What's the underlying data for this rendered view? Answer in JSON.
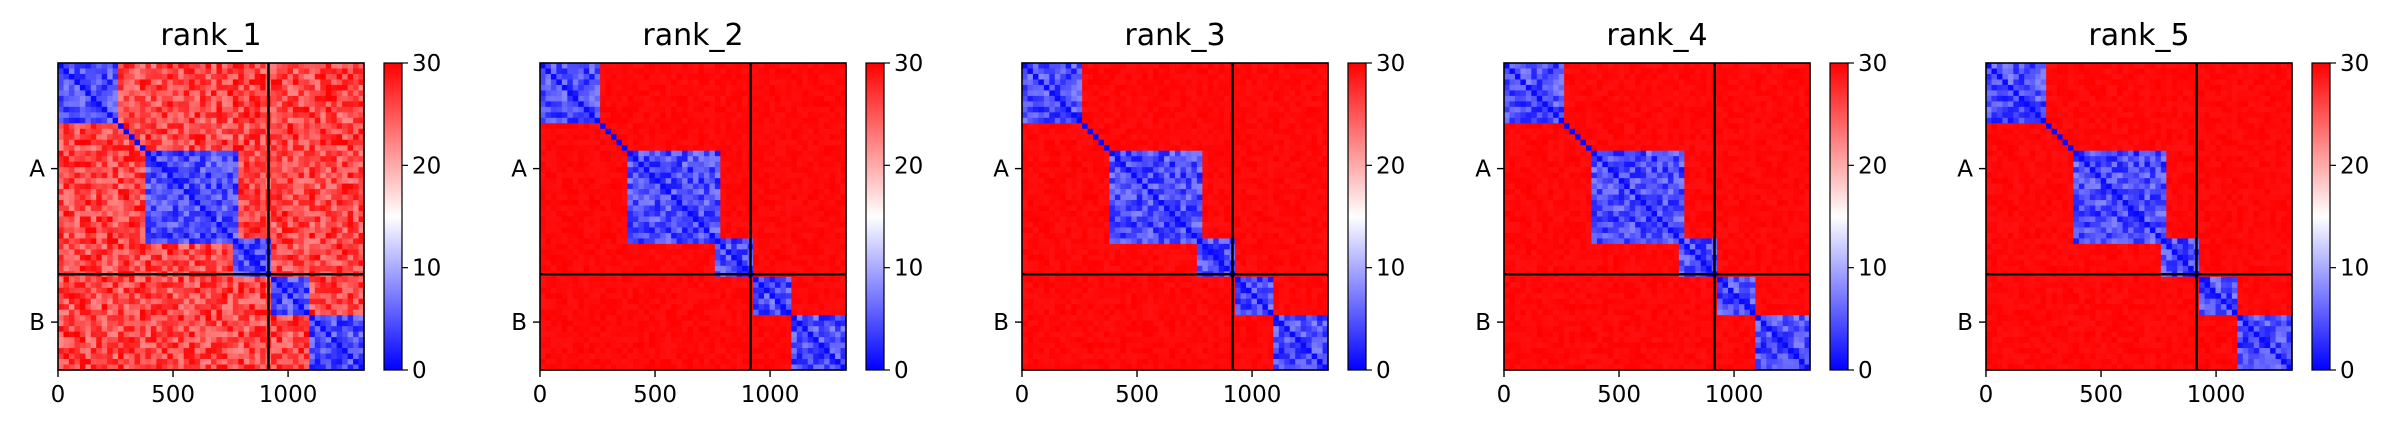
{
  "chart_data": [
    {
      "type": "heatmap",
      "title": "rank_1",
      "xlim": [
        0,
        1330
      ],
      "xticks": [
        "0",
        "500",
        "1000"
      ],
      "xtick_values": [
        0,
        500,
        1000
      ],
      "yticks": [
        "A",
        "B"
      ],
      "chain_boundary": 915,
      "colorbar": {
        "min": 0,
        "max": 30,
        "ticks": [
          "0",
          "10",
          "20",
          "30"
        ],
        "colors": [
          "#0000ff",
          "#ffffff",
          "#ff0000"
        ]
      },
      "domains": [
        [
          0,
          250
        ],
        [
          380,
          780
        ],
        [
          760,
          920
        ],
        [
          920,
          1100
        ],
        [
          1100,
          1330
        ]
      ],
      "interdomain_level": 22
    },
    {
      "type": "heatmap",
      "title": "rank_2",
      "xlim": [
        0,
        1330
      ],
      "xticks": [
        "0",
        "500",
        "1000"
      ],
      "xtick_values": [
        0,
        500,
        1000
      ],
      "yticks": [
        "A",
        "B"
      ],
      "chain_boundary": 915,
      "colorbar": {
        "min": 0,
        "max": 30,
        "ticks": [
          "0",
          "10",
          "20",
          "30"
        ],
        "colors": [
          "#0000ff",
          "#ffffff",
          "#ff0000"
        ]
      },
      "domains": [
        [
          0,
          250
        ],
        [
          380,
          780
        ],
        [
          760,
          920
        ],
        [
          920,
          1100
        ],
        [
          1100,
          1330
        ]
      ],
      "interdomain_level": 29
    },
    {
      "type": "heatmap",
      "title": "rank_3",
      "xlim": [
        0,
        1330
      ],
      "xticks": [
        "0",
        "500",
        "1000"
      ],
      "xtick_values": [
        0,
        500,
        1000
      ],
      "yticks": [
        "A",
        "B"
      ],
      "chain_boundary": 915,
      "colorbar": {
        "min": 0,
        "max": 30,
        "ticks": [
          "0",
          "10",
          "20",
          "30"
        ],
        "colors": [
          "#0000ff",
          "#ffffff",
          "#ff0000"
        ]
      },
      "domains": [
        [
          0,
          250
        ],
        [
          380,
          780
        ],
        [
          760,
          920
        ],
        [
          920,
          1100
        ],
        [
          1100,
          1330
        ]
      ],
      "interdomain_level": 29
    },
    {
      "type": "heatmap",
      "title": "rank_4",
      "xlim": [
        0,
        1330
      ],
      "xticks": [
        "0",
        "500",
        "1000"
      ],
      "xtick_values": [
        0,
        500,
        1000
      ],
      "yticks": [
        "A",
        "B"
      ],
      "chain_boundary": 915,
      "colorbar": {
        "min": 0,
        "max": 30,
        "ticks": [
          "0",
          "10",
          "20",
          "30"
        ],
        "colors": [
          "#0000ff",
          "#ffffff",
          "#ff0000"
        ]
      },
      "domains": [
        [
          0,
          250
        ],
        [
          380,
          780
        ],
        [
          760,
          920
        ],
        [
          920,
          1100
        ],
        [
          1100,
          1330
        ]
      ],
      "interdomain_level": 29
    },
    {
      "type": "heatmap",
      "title": "rank_5",
      "xlim": [
        0,
        1330
      ],
      "xticks": [
        "0",
        "500",
        "1000"
      ],
      "xtick_values": [
        0,
        500,
        1000
      ],
      "yticks": [
        "A",
        "B"
      ],
      "chain_boundary": 915,
      "colorbar": {
        "min": 0,
        "max": 30,
        "ticks": [
          "0",
          "10",
          "20",
          "30"
        ],
        "colors": [
          "#0000ff",
          "#ffffff",
          "#ff0000"
        ]
      },
      "domains": [
        [
          0,
          250
        ],
        [
          380,
          780
        ],
        [
          760,
          920
        ],
        [
          920,
          1100
        ],
        [
          1100,
          1330
        ]
      ],
      "interdomain_level": 29
    }
  ]
}
